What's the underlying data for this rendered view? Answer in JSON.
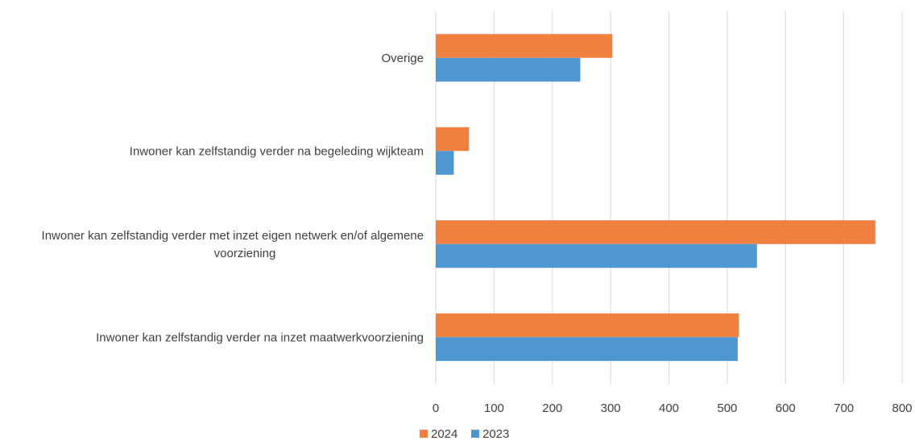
{
  "chart_data": {
    "type": "bar",
    "orientation": "horizontal",
    "categories": [
      [
        "Overige"
      ],
      [
        "Inwoner kan zelfstandig verder na begeleding wijkteam"
      ],
      [
        "Inwoner kan zelfstandig verder met inzet eigen netwerk en/of algemene",
        "voorziening"
      ],
      [
        "Inwoner kan zelfstandig verder na inzet maatwerkvoorziening"
      ]
    ],
    "series": [
      {
        "name": "2024",
        "color": "#F08040",
        "values": [
          303,
          57,
          754,
          520
        ]
      },
      {
        "name": "2023",
        "color": "#4E97D1",
        "values": [
          248,
          31,
          551,
          518
        ]
      }
    ],
    "xlim": [
      0,
      800
    ],
    "xticks": [
      "0",
      "100",
      "200",
      "300",
      "400",
      "500",
      "600",
      "700",
      "800"
    ],
    "grid": true,
    "legend_position": "bottom-center",
    "title": "",
    "xlabel": "",
    "ylabel": ""
  }
}
